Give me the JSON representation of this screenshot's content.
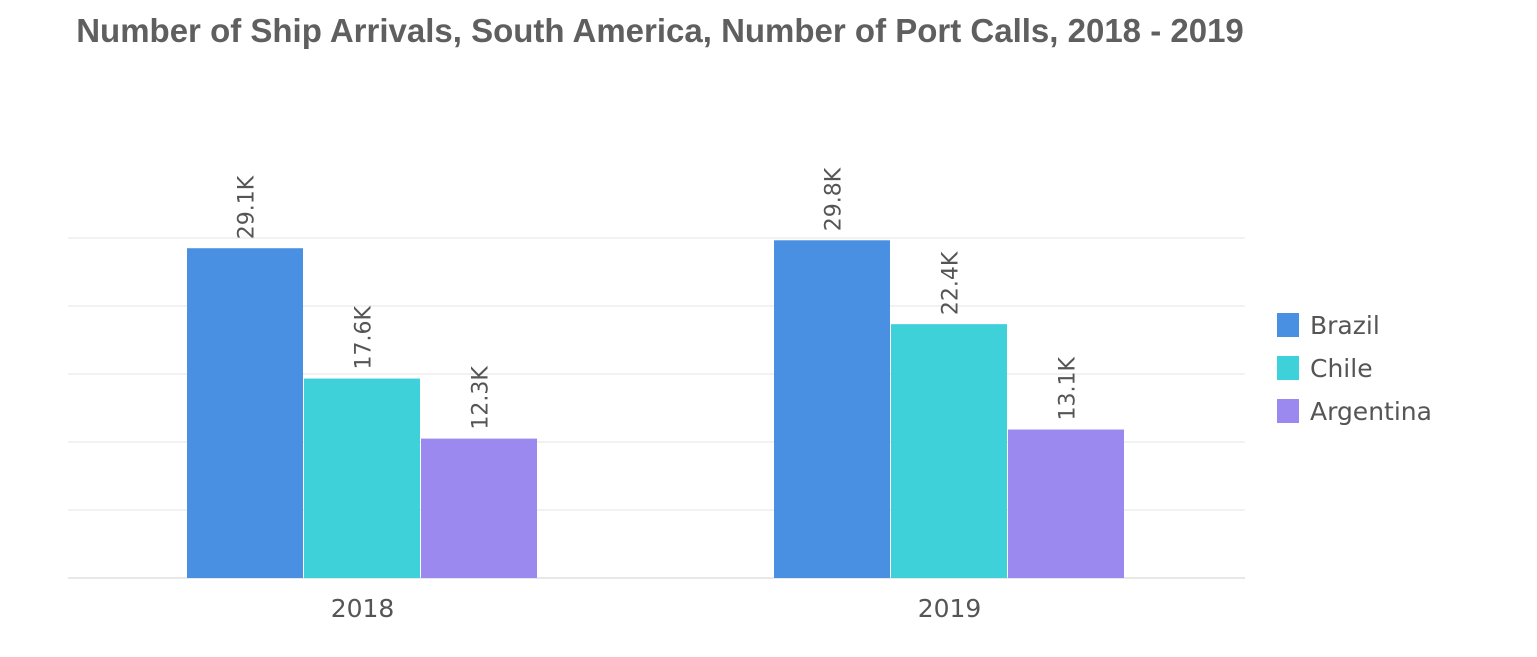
{
  "chart_data": {
    "type": "bar",
    "title": "Number of Ship Arrivals, South America, Number of Port Calls, 2018 - 2019",
    "xlabel": "",
    "ylabel": "",
    "categories": [
      "2018",
      "2019"
    ],
    "series": [
      {
        "name": "Brazil",
        "values": [
          29100,
          29800
        ],
        "labels": [
          "29.1K",
          "29.8K"
        ],
        "color": "#4a90e2"
      },
      {
        "name": "Chile",
        "values": [
          17600,
          22400
        ],
        "labels": [
          "17.6K",
          "22.4K"
        ],
        "color": "#3fd1d9"
      },
      {
        "name": "Argentina",
        "values": [
          12300,
          13100
        ],
        "labels": [
          "12.3K",
          "13.1K"
        ],
        "color": "#9b89f0"
      }
    ],
    "ylim": [
      0,
      30000
    ],
    "grid": true,
    "legend": "right"
  }
}
